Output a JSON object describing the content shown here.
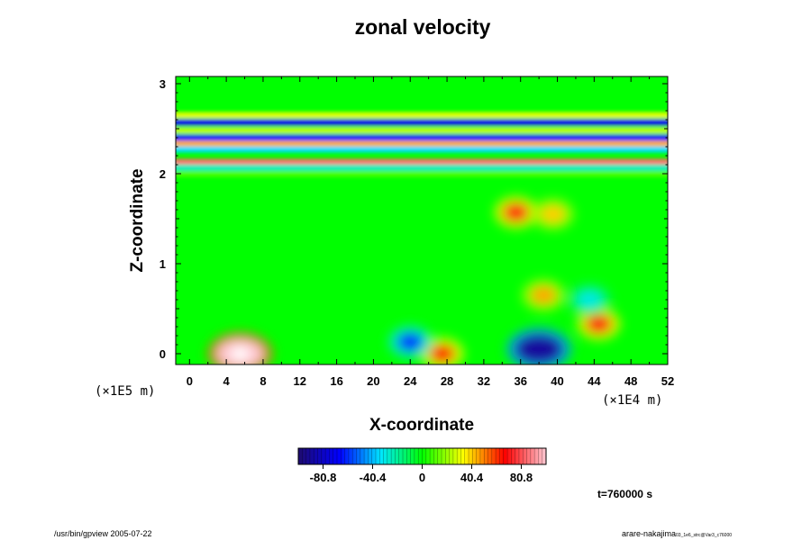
{
  "chart_data": {
    "type": "heatmap",
    "title": "zonal velocity",
    "xlabel": "X-coordinate",
    "ylabel": "Z-coordinate",
    "x_scale_label": "(×1E4 m)",
    "y_scale_label": "(×1E5 m)",
    "xlim": [
      -1.5,
      52
    ],
    "ylim": [
      -0.12,
      3.08
    ],
    "x_ticks": [
      0,
      4,
      8,
      12,
      16,
      20,
      24,
      28,
      32,
      36,
      40,
      44,
      48,
      52
    ],
    "y_ticks": [
      0,
      1,
      2,
      3
    ],
    "colorbar": {
      "ticks": [
        -80.8,
        -40.4,
        0,
        40.4,
        80.8
      ],
      "range": [
        -101,
        101
      ],
      "colors": [
        "#1e0b6e",
        "#0000ff",
        "#00e6ff",
        "#00ff00",
        "#ffff00",
        "#ff0000",
        "#ffc8d2"
      ]
    },
    "bands": [
      {
        "z": 2.65,
        "u": 30
      },
      {
        "z": 2.57,
        "u": -70
      },
      {
        "z": 2.48,
        "u": 25
      },
      {
        "z": 2.4,
        "u": -65
      },
      {
        "z": 2.33,
        "u": 45
      },
      {
        "z": 2.27,
        "u": -35
      },
      {
        "z": 2.13,
        "u": 85
      },
      {
        "z": 2.07,
        "u": -25
      },
      {
        "z": 2.0,
        "u": 10
      }
    ],
    "features": [
      {
        "name": "red-white jet",
        "x": 5.5,
        "z": 0.0,
        "u": 110
      },
      {
        "name": "blue jet",
        "x": 38,
        "z": 0.05,
        "u": -90
      },
      {
        "name": "yellow core",
        "x": 38.5,
        "z": 0.65,
        "u": 45
      },
      {
        "name": "red spot",
        "x": 27.5,
        "z": 0.0,
        "u": 65
      },
      {
        "name": "blue spot",
        "x": 24,
        "z": 0.13,
        "u": -60
      },
      {
        "name": "orange patch",
        "x": 44.5,
        "z": 0.33,
        "u": 70
      },
      {
        "name": "cyan spot",
        "x": 43.5,
        "z": 0.6,
        "u": -30
      },
      {
        "name": "upper red patch",
        "x": 35.5,
        "z": 1.57,
        "u": 70
      },
      {
        "name": "upper yellow patch",
        "x": 39.5,
        "z": 1.55,
        "u": 40
      }
    ],
    "time_label": "t=760000 s"
  },
  "footer": {
    "left": "/usr/bin/gpview 2005-07-22",
    "right": "arare-nakajima",
    "right_sub": "03_1e6_strc@Var3_c76000"
  }
}
